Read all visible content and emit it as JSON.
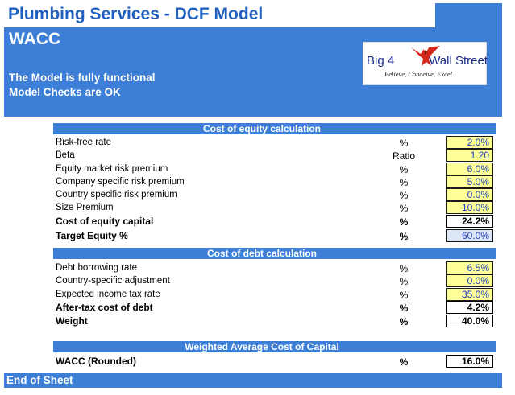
{
  "header": {
    "title": "Plumbing Services - DCF Model",
    "sheet_name": "WACC",
    "status_line1": "The Model is fully functional",
    "status_line2": "Model Checks are OK"
  },
  "logo": {
    "text_left": "Big 4",
    "text_right": "Wall Street",
    "tagline": "Believe, Conceive, Excel"
  },
  "colors": {
    "banner": "#3d7fd6",
    "title": "#1f5fbf",
    "input_fill": "#ffff99",
    "input_text": "#1f3fbf",
    "logo_bird": "#d42a1e"
  },
  "cost_of_equity": {
    "header": "Cost of equity calculation",
    "rows": [
      {
        "label": "Risk-free rate",
        "unit": "%",
        "value": "2.0%"
      },
      {
        "label": "Beta",
        "unit": "Ratio",
        "value": "1.20"
      },
      {
        "label": "Equity market risk premium",
        "unit": "%",
        "value": "6.0%"
      },
      {
        "label": "Company specific risk premium",
        "unit": "%",
        "value": "5.0%"
      },
      {
        "label": "Country specific risk premium",
        "unit": "%",
        "value": "0.0%"
      },
      {
        "label": "Size Premium",
        "unit": "%",
        "value": "10.0%"
      }
    ],
    "result": {
      "label": "Cost of equity capital",
      "unit": "%",
      "value": "24.2%"
    },
    "target": {
      "label": "Target Equity %",
      "unit": "%",
      "value": "60.0%"
    }
  },
  "cost_of_debt": {
    "header": "Cost of debt calculation",
    "rows": [
      {
        "label": "Debt borrowing rate",
        "unit": "%",
        "value": "6.5%"
      },
      {
        "label": "Country-specific adjustment",
        "unit": "%",
        "value": "0.0%"
      },
      {
        "label": "Expected income tax rate",
        "unit": "%",
        "value": "35.0%"
      }
    ],
    "result": {
      "label": "After-tax cost of debt",
      "unit": "%",
      "value": "4.2%"
    },
    "weight": {
      "label": "Weight",
      "unit": "%",
      "value": "40.0%"
    }
  },
  "wacc": {
    "header": "Weighted Average Cost of Capital",
    "row": {
      "label": "WACC (Rounded)",
      "unit": "%",
      "value": "16.0%"
    }
  },
  "footer": {
    "text": "End of Sheet"
  }
}
